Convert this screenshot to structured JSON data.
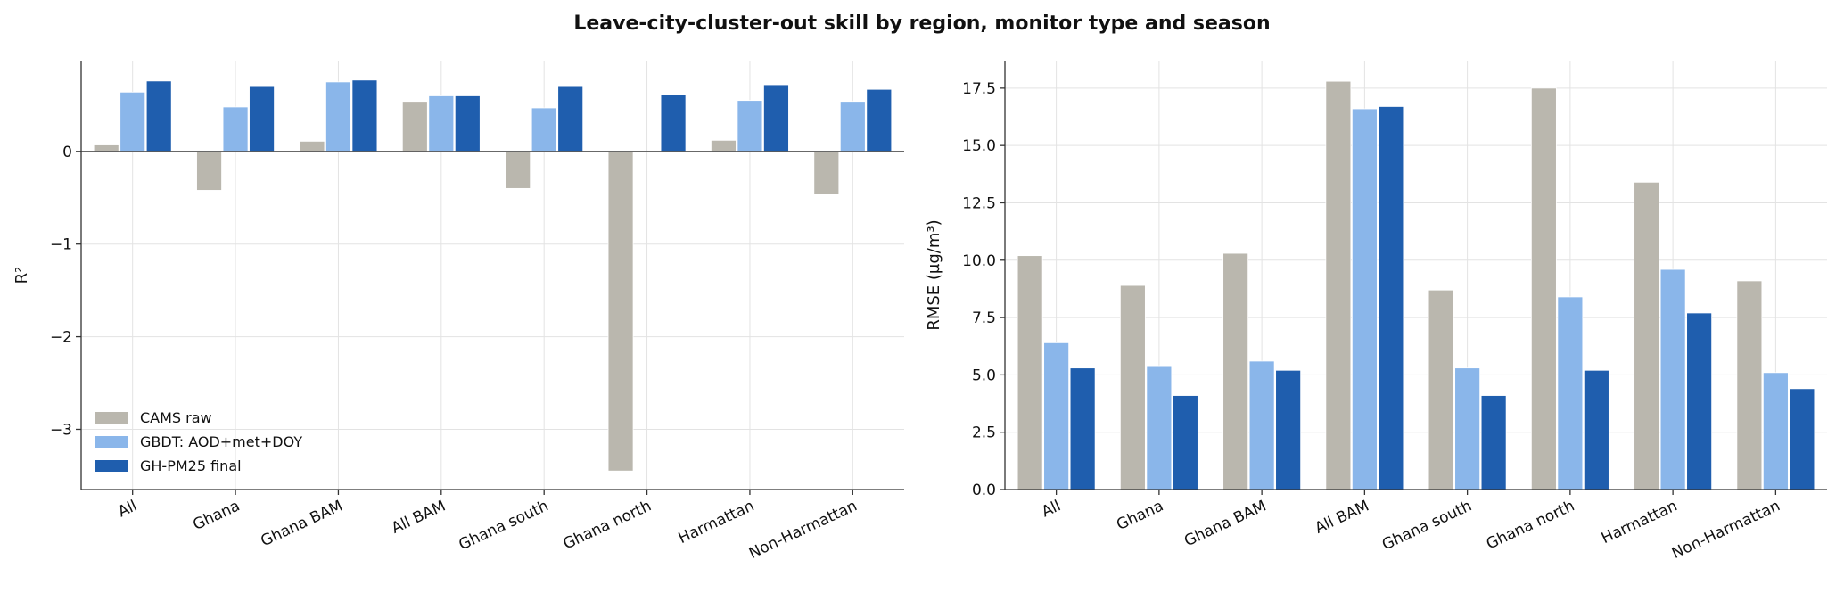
{
  "figure": {
    "title": "Leave-city-cluster-out skill by region, monitor type and season"
  },
  "colors": {
    "CAMS raw": "#bab7ae",
    "GBDT: AOD+met+DOY": "#8ab6ea",
    "GH-PM25 final": "#1f5eae"
  },
  "chart_data": [
    {
      "type": "bar",
      "title": "",
      "xlabel": "",
      "ylabel": "R²",
      "categories": [
        "All",
        "Ghana",
        "Ghana BAM",
        "All BAM",
        "Ghana south",
        "Ghana north",
        "Harmattan",
        "Non-Harmattan"
      ],
      "series": [
        {
          "name": "CAMS raw",
          "values": [
            0.07,
            -0.42,
            0.11,
            0.54,
            -0.4,
            -3.45,
            0.12,
            -0.46
          ]
        },
        {
          "name": "GBDT: AOD+met+DOY",
          "values": [
            0.64,
            0.48,
            0.75,
            0.6,
            0.47,
            -0.01,
            0.55,
            0.54
          ]
        },
        {
          "name": "GH-PM25 final",
          "values": [
            0.76,
            0.7,
            0.77,
            0.6,
            0.7,
            0.61,
            0.72,
            0.67
          ]
        }
      ],
      "ylim": [
        -3.65,
        0.98
      ],
      "yticks": [
        0,
        -1,
        -2,
        -3
      ],
      "ytick_labels": [
        "0",
        "−1",
        "−2",
        "−3"
      ],
      "grid": true,
      "legend": "lower-left"
    },
    {
      "type": "bar",
      "title": "",
      "xlabel": "",
      "ylabel": "RMSE (µg/m³)",
      "categories": [
        "All",
        "Ghana",
        "Ghana BAM",
        "All BAM",
        "Ghana south",
        "Ghana north",
        "Harmattan",
        "Non-Harmattan"
      ],
      "series": [
        {
          "name": "CAMS raw",
          "values": [
            10.2,
            8.9,
            10.3,
            17.8,
            8.7,
            17.5,
            13.4,
            9.1
          ]
        },
        {
          "name": "GBDT: AOD+met+DOY",
          "values": [
            6.4,
            5.4,
            5.6,
            16.6,
            5.3,
            8.4,
            9.6,
            5.1
          ]
        },
        {
          "name": "GH-PM25 final",
          "values": [
            5.3,
            4.1,
            5.2,
            16.7,
            4.1,
            5.2,
            7.7,
            4.4
          ]
        }
      ],
      "ylim": [
        0,
        18.7
      ],
      "yticks": [
        0,
        2.5,
        5,
        7.5,
        10,
        12.5,
        15,
        17.5
      ],
      "ytick_labels": [
        "0.0",
        "2.5",
        "5.0",
        "7.5",
        "10.0",
        "12.5",
        "15.0",
        "17.5"
      ],
      "grid": true,
      "legend": "none"
    }
  ]
}
